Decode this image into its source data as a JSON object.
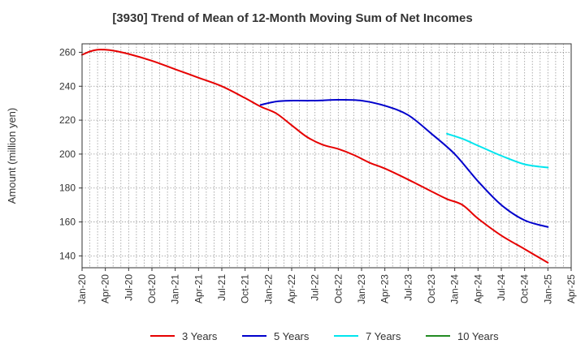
{
  "chart_data": {
    "type": "line",
    "title": "[3930]  Trend of Mean of 12-Month Moving Sum of Net Incomes",
    "xlabel": "",
    "ylabel": "Amount (million yen)",
    "ylim": [
      133,
      265
    ],
    "yticks": [
      140,
      160,
      180,
      200,
      220,
      240,
      260
    ],
    "xlim": [
      "2020-01",
      "2025-04"
    ],
    "xtick_labels": [
      "Jan-20",
      "Apr-20",
      "Jul-20",
      "Oct-20",
      "Jan-21",
      "Apr-21",
      "Jul-21",
      "Oct-21",
      "Jan-22",
      "Apr-22",
      "Jul-22",
      "Oct-22",
      "Jan-23",
      "Apr-23",
      "Jul-23",
      "Oct-23",
      "Jan-24",
      "Apr-24",
      "Jul-24",
      "Oct-24",
      "Jan-25",
      "Apr-25"
    ],
    "grid": true,
    "legend_position": "bottom",
    "series": [
      {
        "name": "3 Years",
        "color": "#e60000",
        "points": [
          [
            "2020-01",
            258.5
          ],
          [
            "2020-02",
            260.5
          ],
          [
            "2020-03",
            261.5
          ],
          [
            "2020-04",
            261.5
          ],
          [
            "2020-05",
            261
          ],
          [
            "2020-07",
            259
          ],
          [
            "2020-10",
            255
          ],
          [
            "2021-01",
            250
          ],
          [
            "2021-04",
            245
          ],
          [
            "2021-07",
            240
          ],
          [
            "2021-10",
            233
          ],
          [
            "2021-12",
            228
          ],
          [
            "2022-02",
            224
          ],
          [
            "2022-04",
            217
          ],
          [
            "2022-06",
            210
          ],
          [
            "2022-08",
            205.5
          ],
          [
            "2022-10",
            203
          ],
          [
            "2022-12",
            199.5
          ],
          [
            "2023-02",
            195
          ],
          [
            "2023-04",
            191.5
          ],
          [
            "2023-07",
            185
          ],
          [
            "2023-10",
            178
          ],
          [
            "2023-12",
            173.5
          ],
          [
            "2024-02",
            170
          ],
          [
            "2024-04",
            162
          ],
          [
            "2024-07",
            152
          ],
          [
            "2024-10",
            144
          ],
          [
            "2025-01",
            136
          ]
        ]
      },
      {
        "name": "5 Years",
        "color": "#0000cc",
        "points": [
          [
            "2021-12",
            229
          ],
          [
            "2022-02",
            231
          ],
          [
            "2022-04",
            231.5
          ],
          [
            "2022-07",
            231.5
          ],
          [
            "2022-10",
            232
          ],
          [
            "2023-01",
            231.5
          ],
          [
            "2023-04",
            228.5
          ],
          [
            "2023-07",
            223
          ],
          [
            "2023-10",
            212
          ],
          [
            "2024-01",
            200
          ],
          [
            "2024-04",
            184
          ],
          [
            "2024-07",
            170
          ],
          [
            "2024-10",
            161
          ],
          [
            "2025-01",
            157
          ]
        ]
      },
      {
        "name": "7 Years",
        "color": "#00e5ee",
        "points": [
          [
            "2023-12",
            212
          ],
          [
            "2024-02",
            209
          ],
          [
            "2024-04",
            205
          ],
          [
            "2024-07",
            199
          ],
          [
            "2024-10",
            194
          ],
          [
            "2025-01",
            192
          ]
        ]
      },
      {
        "name": "10 Years",
        "color": "#228b22",
        "points": []
      }
    ]
  }
}
